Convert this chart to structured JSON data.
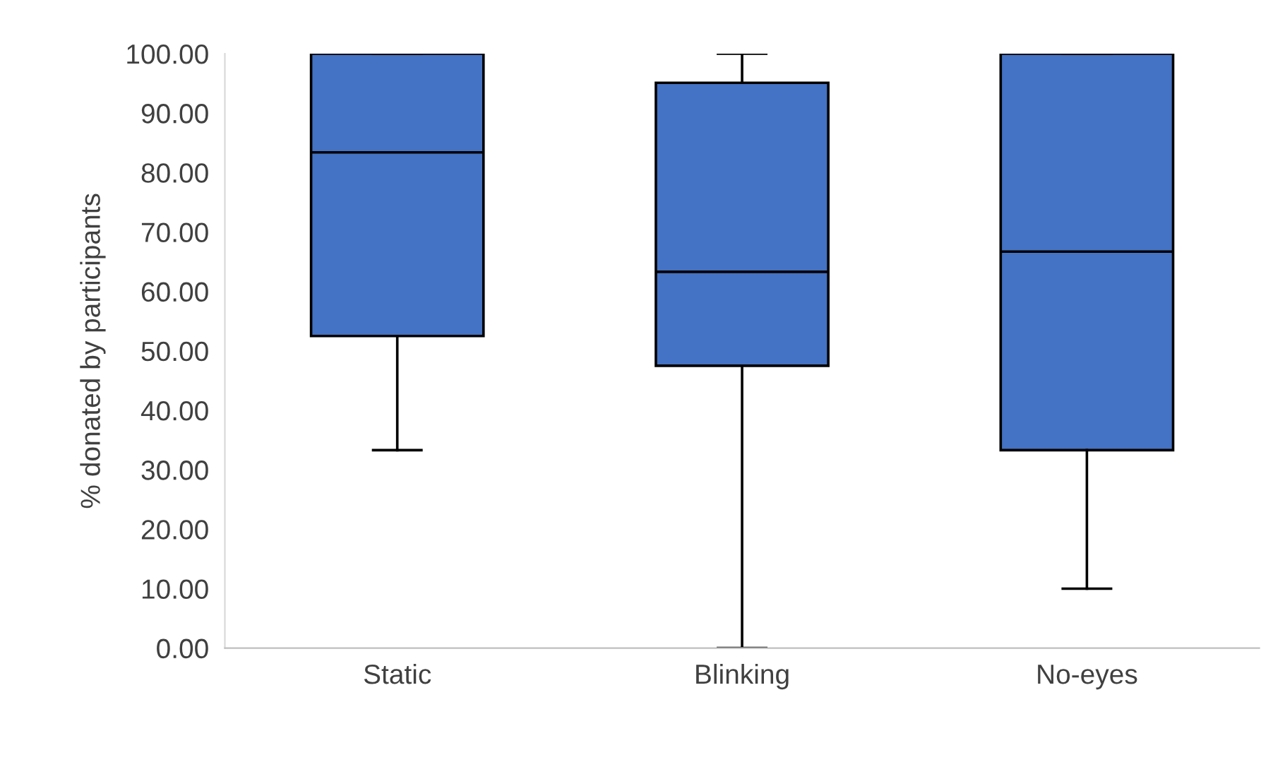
{
  "chart_data": {
    "type": "box",
    "ylabel": "% donated by participants",
    "categories": [
      "Static",
      "Blinking",
      "No-eyes"
    ],
    "color": "#4472c4",
    "boxes": [
      {
        "low": 33.3,
        "q1": 52.5,
        "median": 83.4,
        "q3": 100,
        "high": 100
      },
      {
        "low": 0,
        "q1": 47.5,
        "median": 63.3,
        "q3": 95.1,
        "high": 100
      },
      {
        "low": 10,
        "q1": 33.3,
        "median": 66.7,
        "q3": 100,
        "high": 100
      }
    ],
    "ylim": [
      0,
      100
    ],
    "yticks": [
      {
        "value": 0,
        "label": "0.00"
      },
      {
        "value": 10,
        "label": "10.00"
      },
      {
        "value": 20,
        "label": "20.00"
      },
      {
        "value": 30,
        "label": "30.00"
      },
      {
        "value": 40,
        "label": "40.00"
      },
      {
        "value": 50,
        "label": "50.00"
      },
      {
        "value": 60,
        "label": "60.00"
      },
      {
        "value": 70,
        "label": "70.00"
      },
      {
        "value": 80,
        "label": "80.00"
      },
      {
        "value": 90,
        "label": "90.00"
      },
      {
        "value": 100,
        "label": "100.00"
      }
    ],
    "grid": false,
    "legend": false
  }
}
